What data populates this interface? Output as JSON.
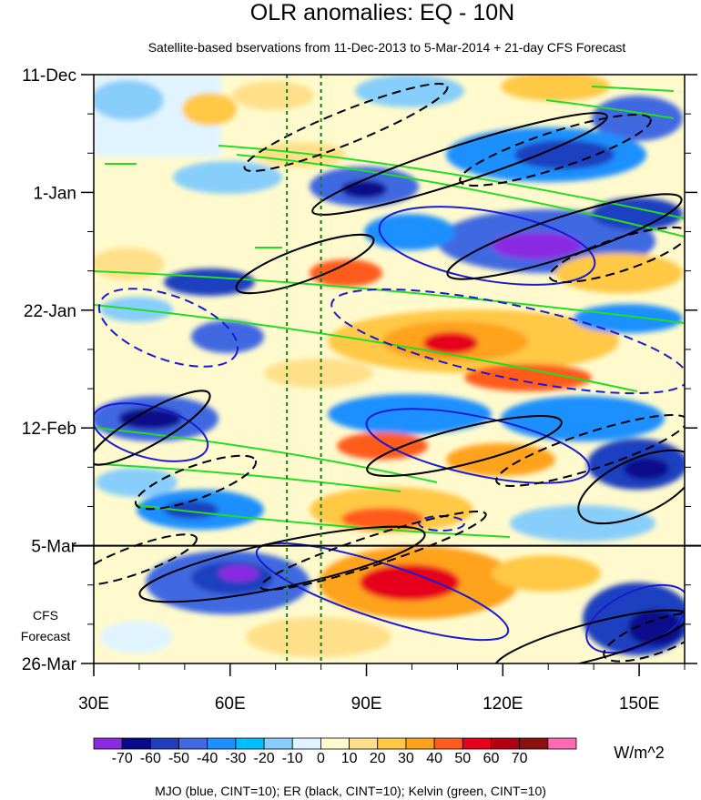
{
  "chart_data": {
    "type": "heatmap",
    "title": "OLR anomalies: EQ - 10N",
    "subtitle": "Satellite-based bservations from 11-Dec-2013 to 5-Mar-2014 + 21-day CFS Forecast",
    "x_ticks": [
      "30E",
      "60E",
      "90E",
      "120E",
      "150E"
    ],
    "x_tick_values": [
      30,
      60,
      90,
      120,
      150
    ],
    "xlim": [
      30,
      160
    ],
    "y_ticks": [
      "11-Dec",
      "1-Jan",
      "22-Jan",
      "12-Feb",
      "5-Mar",
      "26-Mar"
    ],
    "ylim_days": [
      0,
      105
    ],
    "observation_end": "5-Mar",
    "forecast_label_line1": "CFS",
    "forecast_label_line2": "Forecast",
    "reference_longitudes": [
      72.5,
      80
    ],
    "colorbar": {
      "levels": [
        "-70",
        "-60",
        "-50",
        "-40",
        "-30",
        "-20",
        "-10",
        "0",
        "10",
        "20",
        "30",
        "40",
        "50",
        "60",
        "70"
      ],
      "colors": [
        "#8a2be2",
        "#0a0a8c",
        "#1f3fbf",
        "#4169e1",
        "#1e90ff",
        "#00bfff",
        "#87cefa",
        "#e0f4ff",
        "#fffacd",
        "#ffe08a",
        "#ffc845",
        "#ffa21e",
        "#ff5c1f",
        "#e6001a",
        "#b40014",
        "#8b1010",
        "#ff69b4"
      ],
      "units": "W/m^2"
    },
    "legend": "MJO (blue, CINT=10); ER (black, CINT=10); Kelvin (green, CINT=10)",
    "series_colors": {
      "MJO": "#1a1ad6",
      "ER": "#000000",
      "Kelvin": "#22dd22"
    }
  }
}
